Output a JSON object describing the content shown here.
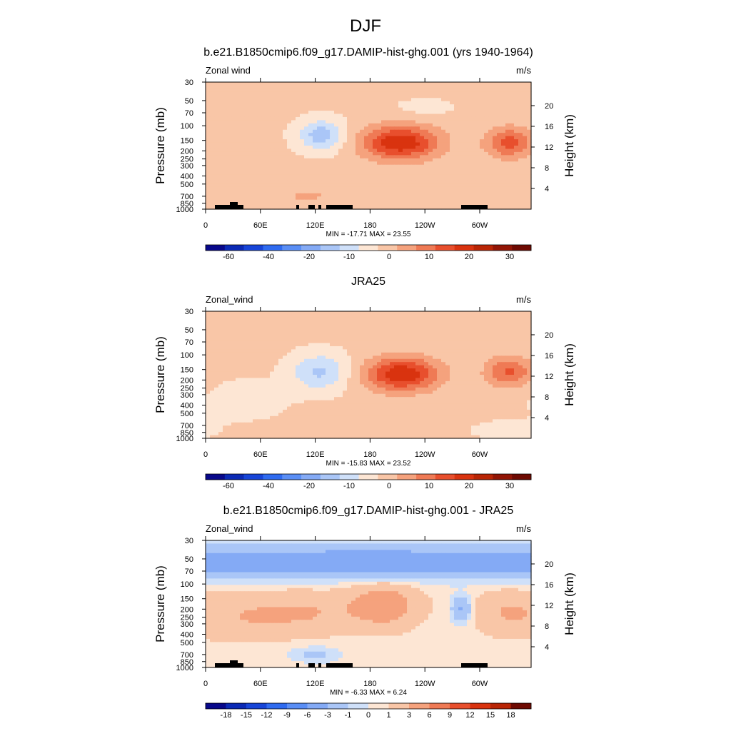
{
  "figure": {
    "title": "DJF"
  },
  "colorbars": {
    "full": [
      "-60",
      "-40",
      "-20",
      "-10",
      "0",
      "10",
      "20",
      "30"
    ],
    "diff": [
      "-18",
      "-15",
      "-12",
      "-9",
      "-6",
      "-3",
      "-1",
      "0",
      "1",
      "3",
      "6",
      "9",
      "12",
      "15",
      "18"
    ]
  },
  "palette": {
    "full": [
      "#08088a",
      "#0b2ab5",
      "#1745d8",
      "#2f6bf0",
      "#5a8ef5",
      "#84aaf5",
      "#aac6f7",
      "#cfe0f9",
      "#fde6d4",
      "#f9c6a7",
      "#f5a27d",
      "#ef7a55",
      "#e84f2d",
      "#d9330f",
      "#b92505",
      "#921505",
      "#6e0a02"
    ],
    "diff": [
      "#08088a",
      "#0b2ab5",
      "#1745d8",
      "#2f6bf0",
      "#5a8ef5",
      "#84aaf5",
      "#aac6f7",
      "#cfe0f9",
      "#fde6d4",
      "#f9c6a7",
      "#f5a27d",
      "#ef7a55",
      "#e84f2d",
      "#d9330f",
      "#b92505",
      "#6e0a02"
    ]
  },
  "chart_data": [
    {
      "type": "heatmap",
      "title": "b.e21.B1850cmip6.f09_g17.DAMIP-hist-ghg.001 (yrs 1940-1964)",
      "variable_label": "Zonal wind",
      "units": "m/s",
      "ylabel": "Pressure (mb)",
      "ylabel_right": "Height (km)",
      "x_ticks": [
        "0",
        "60E",
        "120E",
        "180",
        "120W",
        "60W"
      ],
      "y_ticks": [
        "30",
        "50",
        "70",
        "100",
        "150",
        "200",
        "250",
        "300",
        "400",
        "500",
        "700",
        "850",
        "1000"
      ],
      "y_ticks_right": [
        "20",
        "16",
        "12",
        "8",
        "4"
      ],
      "stats": "MIN = -17.71  MAX =  23.55",
      "colorbar": "full",
      "topography": true,
      "min": -17.71,
      "max": 23.55,
      "background": 1,
      "features": [
        {
          "lon": 213,
          "p": 160,
          "amp": 23.5,
          "sx": 30,
          "sy": 0.33
        },
        {
          "lon": 332,
          "p": 160,
          "amp": 16.0,
          "sx": 18,
          "sy": 0.3
        },
        {
          "lon": 127,
          "p": 130,
          "amp": -14.0,
          "sx": 18,
          "sy": 0.3
        },
        {
          "lon": 112,
          "p": 700,
          "amp": 4.5,
          "sx": 28,
          "sy": 0.22
        },
        {
          "lon": 240,
          "p": 60,
          "amp": -2.5,
          "sx": 25,
          "sy": 0.18
        }
      ]
    },
    {
      "type": "heatmap",
      "title": "JRA25",
      "variable_label": "Zonal_wind",
      "units": "m/s",
      "ylabel": "Pressure (mb)",
      "ylabel_right": "Height (km)",
      "x_ticks": [
        "0",
        "60E",
        "120E",
        "180",
        "120W",
        "60W"
      ],
      "y_ticks": [
        "30",
        "50",
        "70",
        "100",
        "150",
        "200",
        "250",
        "300",
        "400",
        "500",
        "700",
        "850",
        "1000"
      ],
      "y_ticks_right": [
        "20",
        "16",
        "12",
        "8",
        "4"
      ],
      "stats": "MIN = -15.83  MAX =  23.52",
      "colorbar": "full",
      "topography": false,
      "min": -15.83,
      "max": 23.52,
      "background": 1,
      "features": [
        {
          "lon": 215,
          "p": 170,
          "amp": 23.5,
          "sx": 28,
          "sy": 0.33
        },
        {
          "lon": 332,
          "p": 160,
          "amp": 15.0,
          "sx": 18,
          "sy": 0.3
        },
        {
          "lon": 125,
          "p": 160,
          "amp": -12.0,
          "sx": 22,
          "sy": 0.35
        },
        {
          "lon": 40,
          "p": 350,
          "amp": -3.0,
          "sx": 35,
          "sy": 0.4
        },
        {
          "lon": 110,
          "p": 800,
          "amp": 3.0,
          "sx": 25,
          "sy": 0.15
        },
        {
          "lon": 330,
          "p": 800,
          "amp": -2.5,
          "sx": 30,
          "sy": 0.2
        }
      ]
    },
    {
      "type": "heatmap",
      "title": "b.e21.B1850cmip6.f09_g17.DAMIP-hist-ghg.001 - JRA25",
      "variable_label": "Zonal_wind",
      "units": "m/s",
      "ylabel": "Pressure (mb)",
      "ylabel_right": "Height (km)",
      "x_ticks": [
        "0",
        "60E",
        "120E",
        "180",
        "120W",
        "60W"
      ],
      "y_ticks": [
        "30",
        "50",
        "70",
        "100",
        "150",
        "200",
        "250",
        "300",
        "400",
        "500",
        "700",
        "850",
        "1000"
      ],
      "y_ticks_right": [
        "20",
        "16",
        "12",
        "8",
        "4"
      ],
      "stats": "MIN = -6.33  MAX =  6.24",
      "colorbar": "diff",
      "topography": true,
      "min": -6.33,
      "max": 6.24,
      "background": 0.5,
      "features": [
        {
          "lon": 180,
          "p": 55,
          "amp": -5.8,
          "sx": 400,
          "sy": 0.3
        },
        {
          "lon": 195,
          "p": 180,
          "amp": 4.5,
          "sx": 25,
          "sy": 0.4
        },
        {
          "lon": 110,
          "p": 220,
          "amp": 2.5,
          "sx": 40,
          "sy": 0.4
        },
        {
          "lon": 40,
          "p": 250,
          "amp": 2.0,
          "sx": 35,
          "sy": 0.4
        },
        {
          "lon": 280,
          "p": 200,
          "amp": -4.0,
          "sx": 8,
          "sy": 0.25
        },
        {
          "lon": 330,
          "p": 220,
          "amp": 2.5,
          "sx": 25,
          "sy": 0.4
        },
        {
          "lon": 120,
          "p": 700,
          "amp": -2.0,
          "sx": 20,
          "sy": 0.15
        }
      ]
    }
  ]
}
